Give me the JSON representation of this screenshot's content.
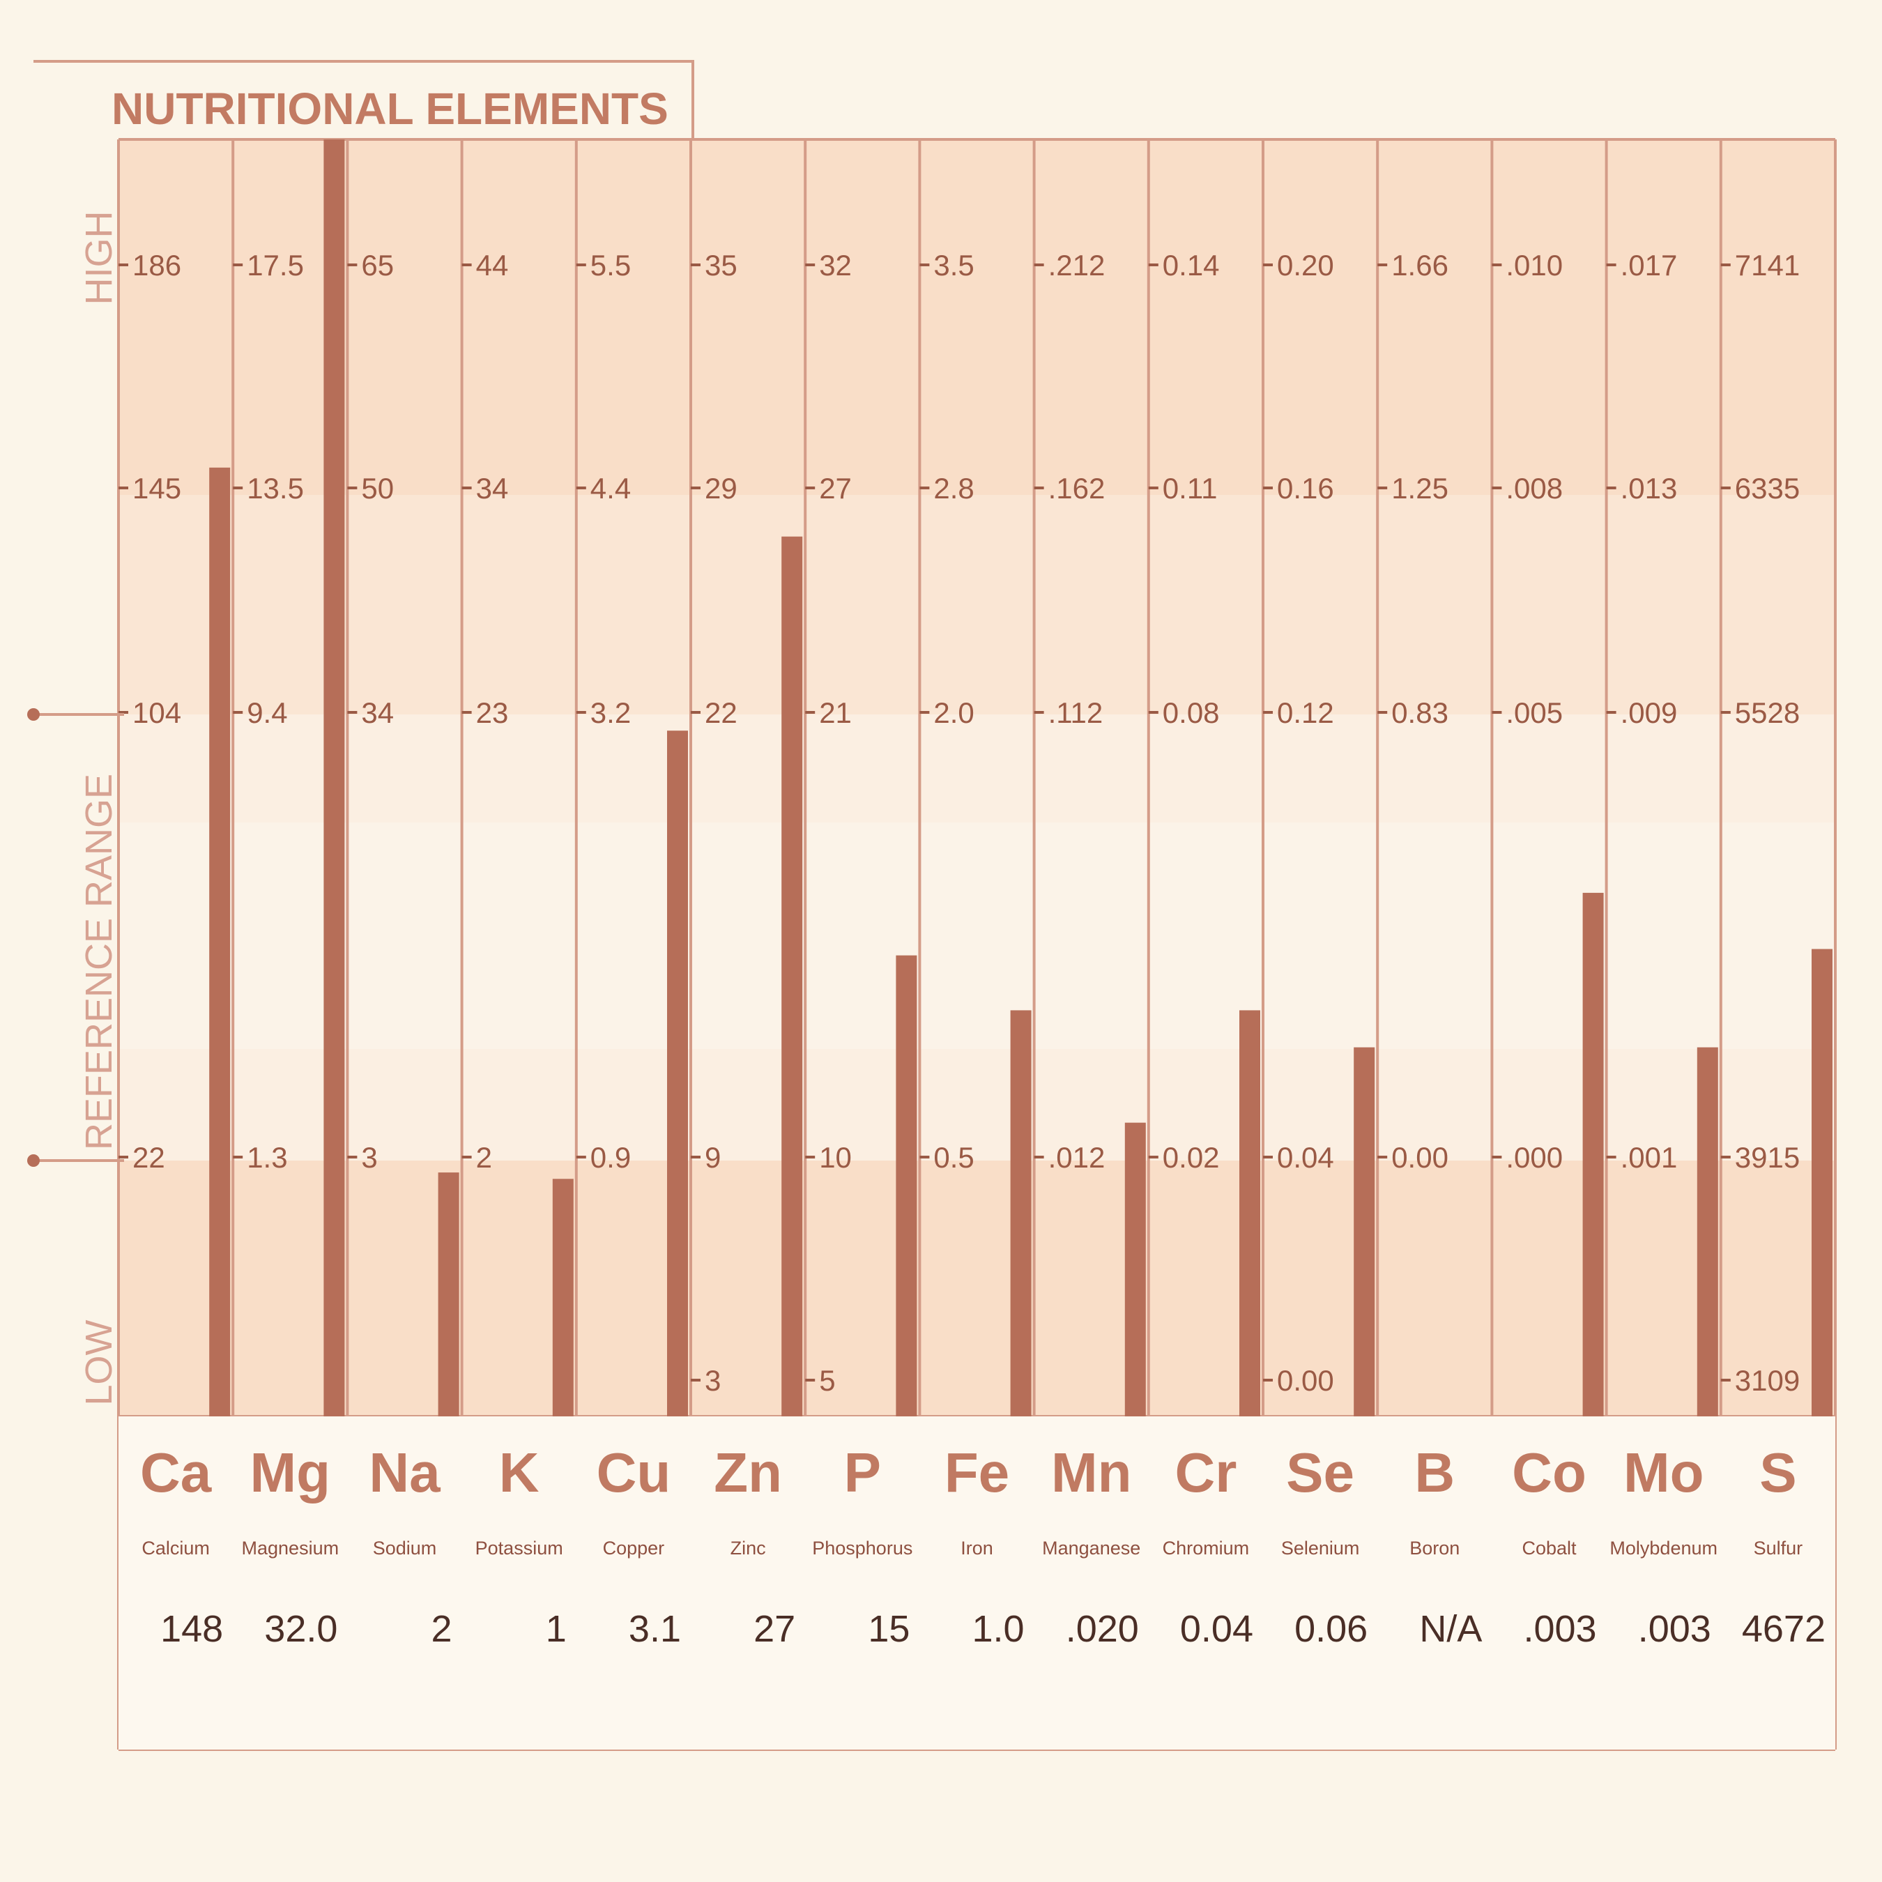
{
  "chart_data": {
    "type": "bar",
    "title": "NUTRITIONAL ELEMENTS",
    "y_axis_labels": {
      "high": "HIGH",
      "reference": "REFERENCE RANGE",
      "low": "LOW"
    },
    "elements": [
      {
        "symbol": "Ca",
        "name": "Calcium",
        "value_label": "148",
        "bar_position": 0.743,
        "scale": [
          "186",
          "145",
          "104",
          "22"
        ]
      },
      {
        "symbol": "Mg",
        "name": "Magnesium",
        "value_label": "32.0",
        "bar_position": 1.0,
        "scale": [
          "17.5",
          "13.5",
          "9.4",
          "1.3"
        ]
      },
      {
        "symbol": "Na",
        "name": "Sodium",
        "value_label": "2",
        "bar_position": 0.191,
        "scale": [
          "65",
          "50",
          "34",
          "3"
        ]
      },
      {
        "symbol": "K",
        "name": "Potassium",
        "value_label": "1",
        "bar_position": 0.186,
        "scale": [
          "44",
          "34",
          "23",
          "2"
        ]
      },
      {
        "symbol": "Cu",
        "name": "Copper",
        "value_label": "3.1",
        "bar_position": 0.537,
        "scale": [
          "5.5",
          "4.4",
          "3.2",
          "0.9"
        ]
      },
      {
        "symbol": "Zn",
        "name": "Zinc",
        "value_label": "27",
        "bar_position": 0.689,
        "scale": [
          "35",
          "29",
          "22",
          "9",
          "3"
        ]
      },
      {
        "symbol": "P",
        "name": "Phosphorus",
        "value_label": "15",
        "bar_position": 0.361,
        "scale": [
          "32",
          "27",
          "21",
          "10",
          "5"
        ]
      },
      {
        "symbol": "Fe",
        "name": "Iron",
        "value_label": "1.0",
        "bar_position": 0.318,
        "scale": [
          "3.5",
          "2.8",
          "2.0",
          "0.5"
        ]
      },
      {
        "symbol": "Mn",
        "name": "Manganese",
        "value_label": ".020",
        "bar_position": 0.23,
        "scale": [
          ".212",
          ".162",
          ".112",
          ".012"
        ]
      },
      {
        "symbol": "Cr",
        "name": "Chromium",
        "value_label": "0.04",
        "bar_position": 0.318,
        "scale": [
          "0.14",
          "0.11",
          "0.08",
          "0.02"
        ]
      },
      {
        "symbol": "Se",
        "name": "Selenium",
        "value_label": "0.06",
        "bar_position": 0.289,
        "scale": [
          "0.20",
          "0.16",
          "0.12",
          "0.04",
          "0.00"
        ]
      },
      {
        "symbol": "B",
        "name": "Boron",
        "value_label": "N/A",
        "bar_position": 0,
        "scale": [
          "1.66",
          "1.25",
          "0.83",
          "0.00"
        ]
      },
      {
        "symbol": "Co",
        "name": "Cobalt",
        "value_label": ".003",
        "bar_position": 0.41,
        "scale": [
          ".010",
          ".008",
          ".005",
          ".000"
        ]
      },
      {
        "symbol": "Mo",
        "name": "Molybdenum",
        "value_label": ".003",
        "bar_position": 0.289,
        "scale": [
          ".017",
          ".013",
          ".009",
          ".001"
        ]
      },
      {
        "symbol": "S",
        "name": "Sulfur",
        "value_label": "4672",
        "bar_position": 0.366,
        "scale": [
          "7141",
          "6335",
          "5528",
          "3915",
          "3109"
        ]
      }
    ],
    "colors": {
      "frame": "#d49c88",
      "bar": "#b66e58",
      "title": "#c27b63",
      "symbol": "#c07a62",
      "value_text": "#4a2e26",
      "band_high": "#f9dec8",
      "band_reference": "#fbf3e8",
      "band_low": "#f9dec8"
    }
  }
}
